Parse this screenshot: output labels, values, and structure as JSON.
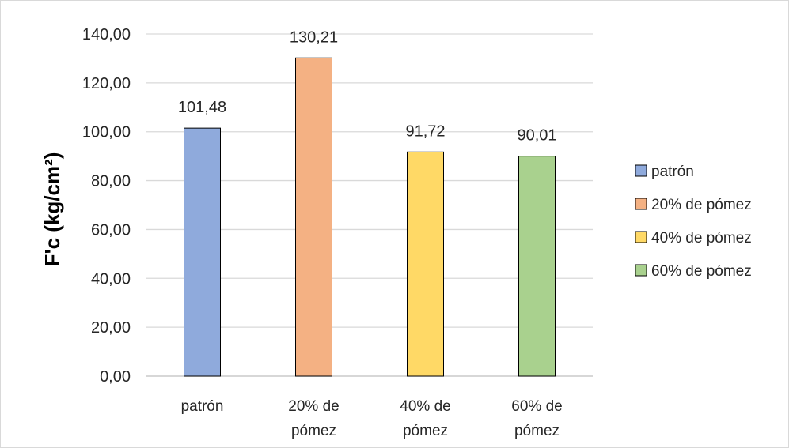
{
  "chart_data": {
    "type": "bar",
    "categories": [
      "patrón",
      "20% de pómez",
      "40% de pómez",
      "60% de pómez"
    ],
    "category_lines": [
      [
        "patrón"
      ],
      [
        "20% de",
        "pómez"
      ],
      [
        "40% de",
        "pómez"
      ],
      [
        "60% de",
        "pómez"
      ]
    ],
    "values": [
      101.48,
      130.21,
      91.72,
      90.01
    ],
    "value_labels": [
      "101,48",
      "130,21",
      "91,72",
      "90,01"
    ],
    "colors": [
      "#8faadc",
      "#f4b183",
      "#ffd966",
      "#a9d18e"
    ],
    "ylabel": "F'c (kg/cm²)",
    "ylim": [
      0,
      140
    ],
    "yticks": [
      0,
      20,
      40,
      60,
      80,
      100,
      120,
      140
    ],
    "ytick_labels": [
      "0,00",
      "20,00",
      "40,00",
      "60,00",
      "80,00",
      "100,00",
      "120,00",
      "140,00"
    ],
    "grid": true,
    "legend": {
      "placement": "right",
      "entries": [
        "patrón",
        "20% de pómez",
        "40% de pómez",
        "60% de pómez"
      ]
    }
  }
}
